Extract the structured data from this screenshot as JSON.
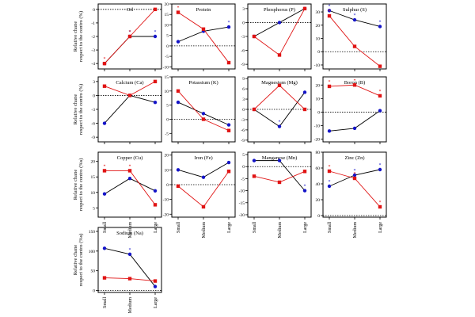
{
  "figure": {
    "ylabel_line1": "Relative chane",
    "ylabel_line2": "respect to the contro (%)",
    "ylabel_line2_row3": "respect to the contro (%s)",
    "xcategories": [
      "Small",
      "Medium",
      "Large"
    ],
    "colors": {
      "series_a": "#1414c8",
      "series_b": "#e01414",
      "star_blue": "#1414c8",
      "star_red": "#e01414"
    }
  },
  "chart_data": [
    {
      "type": "line",
      "title": "Oil",
      "categories": [
        "Small",
        "Medium",
        "Large"
      ],
      "yticks": [
        0,
        -1,
        -2,
        -3,
        -4
      ],
      "ylim": [
        -4.4,
        0.4
      ],
      "series": [
        {
          "values": [
            -4,
            -2,
            -2
          ],
          "stars": [
            false,
            true,
            true
          ]
        },
        {
          "values": [
            -4,
            -2,
            0
          ],
          "stars": [
            true,
            true,
            false
          ]
        }
      ]
    },
    {
      "type": "line",
      "title": "Protein",
      "categories": [
        "Small",
        "Medium",
        "Large"
      ],
      "yticks": [
        20,
        15,
        10,
        5,
        0,
        -5,
        -10
      ],
      "ylim": [
        -11,
        20
      ],
      "series": [
        {
          "values": [
            2,
            7,
            9
          ],
          "stars": [
            false,
            false,
            true
          ]
        },
        {
          "values": [
            16,
            8,
            -8
          ],
          "stars": [
            true,
            false,
            false
          ]
        }
      ]
    },
    {
      "type": "line",
      "title": "Phosphorus (P)",
      "categories": [
        "Small",
        "Medium",
        "Large"
      ],
      "yticks": [
        3,
        0,
        -3,
        -6,
        -9
      ],
      "ylim": [
        -10,
        4
      ],
      "series": [
        {
          "values": [
            -3,
            0,
            3
          ],
          "stars": [
            false,
            false,
            false
          ]
        },
        {
          "values": [
            -3,
            -7,
            3
          ],
          "stars": [
            false,
            false,
            false
          ]
        }
      ]
    },
    {
      "type": "line",
      "title": "Sulphur (S)",
      "categories": [
        "Small",
        "Medium",
        "Large"
      ],
      "yticks": [
        30,
        20,
        10,
        0,
        -10
      ],
      "ylim": [
        -13,
        36
      ],
      "series": [
        {
          "values": [
            31,
            24,
            19
          ],
          "stars": [
            true,
            true,
            true
          ]
        },
        {
          "values": [
            27,
            4,
            -11
          ],
          "stars": [
            true,
            false,
            false
          ]
        }
      ]
    },
    {
      "type": "line",
      "title": "Calcium (Ca)",
      "categories": [
        "Small",
        "Medium",
        "Large"
      ],
      "yticks": [
        3,
        0,
        -3,
        -6,
        -9
      ],
      "ylim": [
        -10,
        4
      ],
      "series": [
        {
          "values": [
            -6,
            0,
            -1.5
          ],
          "stars": [
            false,
            false,
            false
          ]
        },
        {
          "values": [
            2,
            0,
            3
          ],
          "stars": [
            false,
            false,
            false
          ]
        }
      ]
    },
    {
      "type": "line",
      "title": "Potassium (K)",
      "categories": [
        "Small",
        "Medium",
        "Large"
      ],
      "yticks": [
        15,
        10,
        5,
        0,
        -5
      ],
      "ylim": [
        -8,
        15
      ],
      "series": [
        {
          "name": "",
          "values": [
            6,
            2,
            -2
          ],
          "stars": [
            false,
            false,
            false
          ]
        },
        {
          "values": [
            10,
            0,
            -4
          ],
          "stars": [
            false,
            false,
            false
          ]
        }
      ]
    },
    {
      "type": "line",
      "title": "Magnesium (Mg)",
      "categories": [
        "Small",
        "Medium",
        "Large"
      ],
      "yticks": [
        9,
        6,
        3,
        0,
        -3,
        -6,
        -9
      ],
      "ylim": [
        -9.5,
        9.5
      ],
      "series": [
        {
          "values": [
            0,
            -5,
            5
          ],
          "stars": [
            false,
            true,
            false
          ]
        },
        {
          "values": [
            0,
            7,
            0
          ],
          "stars": [
            false,
            false,
            false
          ]
        }
      ]
    },
    {
      "type": "line",
      "title": "Boron (B)",
      "categories": [
        "Small",
        "Medium",
        "Large"
      ],
      "yticks": [
        20,
        10,
        0,
        -10,
        -20
      ],
      "ylim": [
        -22,
        26
      ],
      "series": [
        {
          "values": [
            -14,
            -12,
            1
          ],
          "stars": [
            false,
            false,
            false
          ]
        },
        {
          "values": [
            19,
            20,
            12
          ],
          "stars": [
            true,
            true,
            true
          ]
        }
      ]
    },
    {
      "type": "line",
      "title": "Copper (Cu)",
      "categories": [
        "Small",
        "Medium",
        "Large"
      ],
      "yticks": [
        20,
        15,
        10,
        5
      ],
      "ylim": [
        2,
        23
      ],
      "series": [
        {
          "values": [
            9.5,
            14.5,
            10.5
          ],
          "stars": [
            false,
            false,
            false
          ]
        },
        {
          "values": [
            17,
            17,
            6
          ],
          "stars": [
            true,
            true,
            false
          ]
        }
      ]
    },
    {
      "type": "line",
      "title": "Iron (Fe)",
      "categories": [
        "Small",
        "Medium",
        "Large"
      ],
      "yticks": [
        20,
        10,
        0,
        -10,
        -20
      ],
      "ylim": [
        -22,
        22
      ],
      "series": [
        {
          "values": [
            10,
            5,
            15
          ],
          "stars": [
            false,
            false,
            false
          ]
        },
        {
          "values": [
            -1,
            -15,
            9
          ],
          "stars": [
            false,
            false,
            false
          ]
        }
      ]
    },
    {
      "type": "line",
      "title": "Manganese (Mn)",
      "categories": [
        "Small",
        "Medium",
        "Large"
      ],
      "yticks": [
        5,
        0,
        -5,
        -10,
        -15,
        -20
      ],
      "ylim": [
        -21,
        6
      ],
      "series": [
        {
          "values": [
            2.5,
            2.5,
            -10
          ],
          "stars": [
            false,
            false,
            true
          ]
        },
        {
          "values": [
            -4,
            -6.5,
            -2
          ],
          "stars": [
            false,
            false,
            false
          ]
        }
      ]
    },
    {
      "type": "line",
      "title": "Zinc (Zn)",
      "categories": [
        "Small",
        "Medium",
        "Large"
      ],
      "yticks": [
        80,
        60,
        40,
        20,
        0
      ],
      "ylim": [
        -2,
        80
      ],
      "series": [
        {
          "values": [
            37,
            51,
            58
          ],
          "stars": [
            true,
            true,
            true
          ]
        },
        {
          "values": [
            56,
            47,
            11
          ],
          "stars": [
            true,
            true,
            true
          ]
        }
      ]
    },
    {
      "type": "line",
      "title": "Sodium (Na)",
      "categories": [
        "Small",
        "Medium",
        "Large"
      ],
      "yticks": [
        150,
        100,
        50,
        0
      ],
      "ylim": [
        -5,
        160
      ],
      "series": [
        {
          "values": [
            107,
            92,
            10
          ],
          "stars": [
            false,
            true,
            false
          ]
        },
        {
          "values": [
            32,
            30,
            24
          ],
          "stars": [
            false,
            false,
            false
          ]
        }
      ]
    }
  ]
}
